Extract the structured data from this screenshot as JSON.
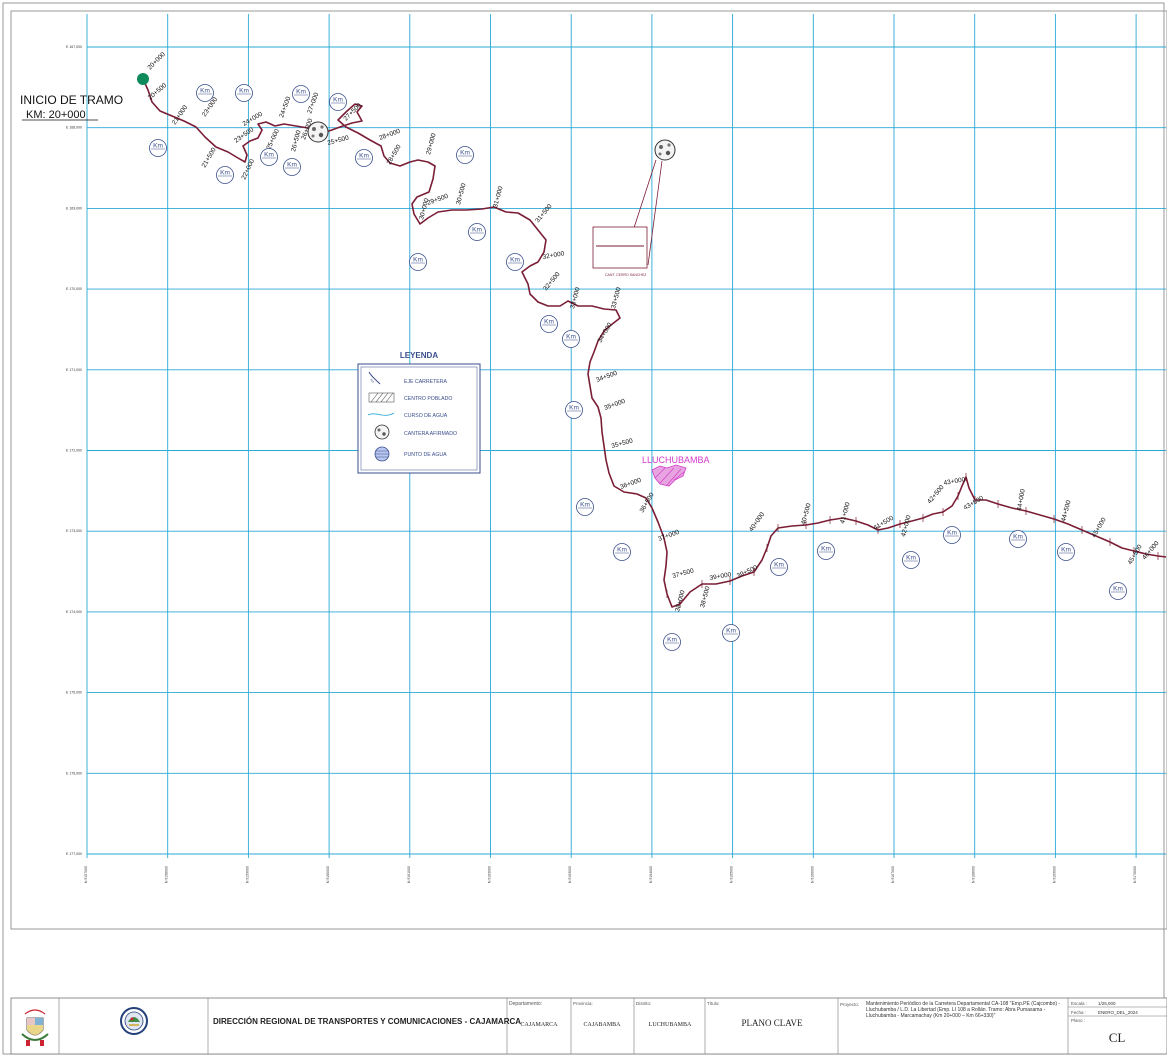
{
  "colors": {
    "grid": "#29a9d6",
    "road": "#7a1e36",
    "label": "#111111",
    "km_circle": "#3a4e8c",
    "town": "#d23bc8",
    "legend_title": "#3a4e8c",
    "start_marker": "#0f8a5a"
  },
  "map": {
    "start_title": "INICIO DE TRAMO",
    "start_km": "KM:  20+000",
    "town_label": "LLUCHUBAMBA",
    "quarry_caption": "CANT. CERRO SANCHEZ",
    "northings": [
      "E 167,000",
      "E 168,000",
      "E 169,000",
      "E 170,000",
      "E 171,000",
      "E 172,000",
      "E 173,000",
      "E 174,000",
      "E 175,000",
      "E 176,000",
      "E 177,000"
    ],
    "eastings": [
      "N 9157000",
      "N 9158000",
      "N 9159000",
      "N 9160000",
      "N 9161000",
      "N 9162000",
      "N 9163000",
      "N 9164000",
      "N 9165000",
      "N 9166000",
      "N 9167000",
      "N 9168000",
      "N 9169000",
      "N 9170000"
    ],
    "chainage_labels": [
      "20+000",
      "20+500",
      "21+000",
      "21+500",
      "22+000",
      "23+000",
      "23+500",
      "24+000",
      "24+500",
      "25+000",
      "25+500",
      "26+000",
      "26+500",
      "27+000",
      "27+500",
      "28+000",
      "28+500",
      "29+000",
      "29+500",
      "30+000",
      "30+500",
      "31+000",
      "31+500",
      "32+000",
      "32+500",
      "33+000",
      "33+500",
      "34+000",
      "34+500",
      "35+000",
      "35+500",
      "36+000",
      "36+500",
      "37+000",
      "37+500",
      "38+000",
      "38+500",
      "39+000",
      "39+500",
      "40+000",
      "40+500",
      "41+000",
      "41+500",
      "42+000",
      "42+500",
      "43+000",
      "43+500",
      "44+000",
      "44+500",
      "45+000",
      "45+500",
      "46+000"
    ],
    "km_badges": [
      "Km",
      "Km",
      "Km",
      "Km",
      "Km",
      "Km",
      "Km",
      "Km",
      "Km",
      "Km",
      "Km",
      "Km",
      "Km",
      "Km",
      "Km",
      "Km",
      "Km",
      "Km",
      "Km",
      "Km",
      "Km",
      "Km",
      "Km",
      "Km",
      "Km",
      "Km",
      "Km",
      "Km"
    ]
  },
  "legend": {
    "title": "LEYENDA",
    "items": [
      {
        "icon": "road-axis-icon",
        "label": "EJE CARRETERA"
      },
      {
        "icon": "town-hatch-icon",
        "label": "CENTRO POBLADO"
      },
      {
        "icon": "water-course-icon",
        "label": "CURSO DE AGUA"
      },
      {
        "icon": "quarry-icon",
        "label": "CANTERA AFIRMADO"
      },
      {
        "icon": "water-point-icon",
        "label": "PUNTO DE AGUA"
      }
    ]
  },
  "title_block": {
    "org": "DIRECCIÓN REGIONAL DE TRANSPORTES Y COMUNICACIONES - CAJAMARCA",
    "dept_caption": "Departamento:",
    "dept": "CAJAMARCA",
    "prov_caption": "Provincia:",
    "prov": "CAJABAMBA",
    "dist_caption": "Distrito:",
    "dist": "LUCHUBAMBA",
    "title_caption": "Título:",
    "title": "PLANO  CLAVE",
    "project_caption": "Proyecto:",
    "project": "Mantenimiento Periódico de la Carretera Departamental CA-108 \"Emp.PE (Cajcombo) - Lluchubamba / L.D. La Libertad (Emp. LI 108 a Rollán. Tramo: Abra Pumasama - Lluchubamba - Marcamachay (Km 20+000 – Km 66+330)\"",
    "scale_caption": "Escala :",
    "scale": "1/25,000",
    "date_caption": "Fecha :",
    "date": "ENERO_DEL_2024",
    "sheet_caption": "Plano :",
    "sheet": "CL"
  }
}
